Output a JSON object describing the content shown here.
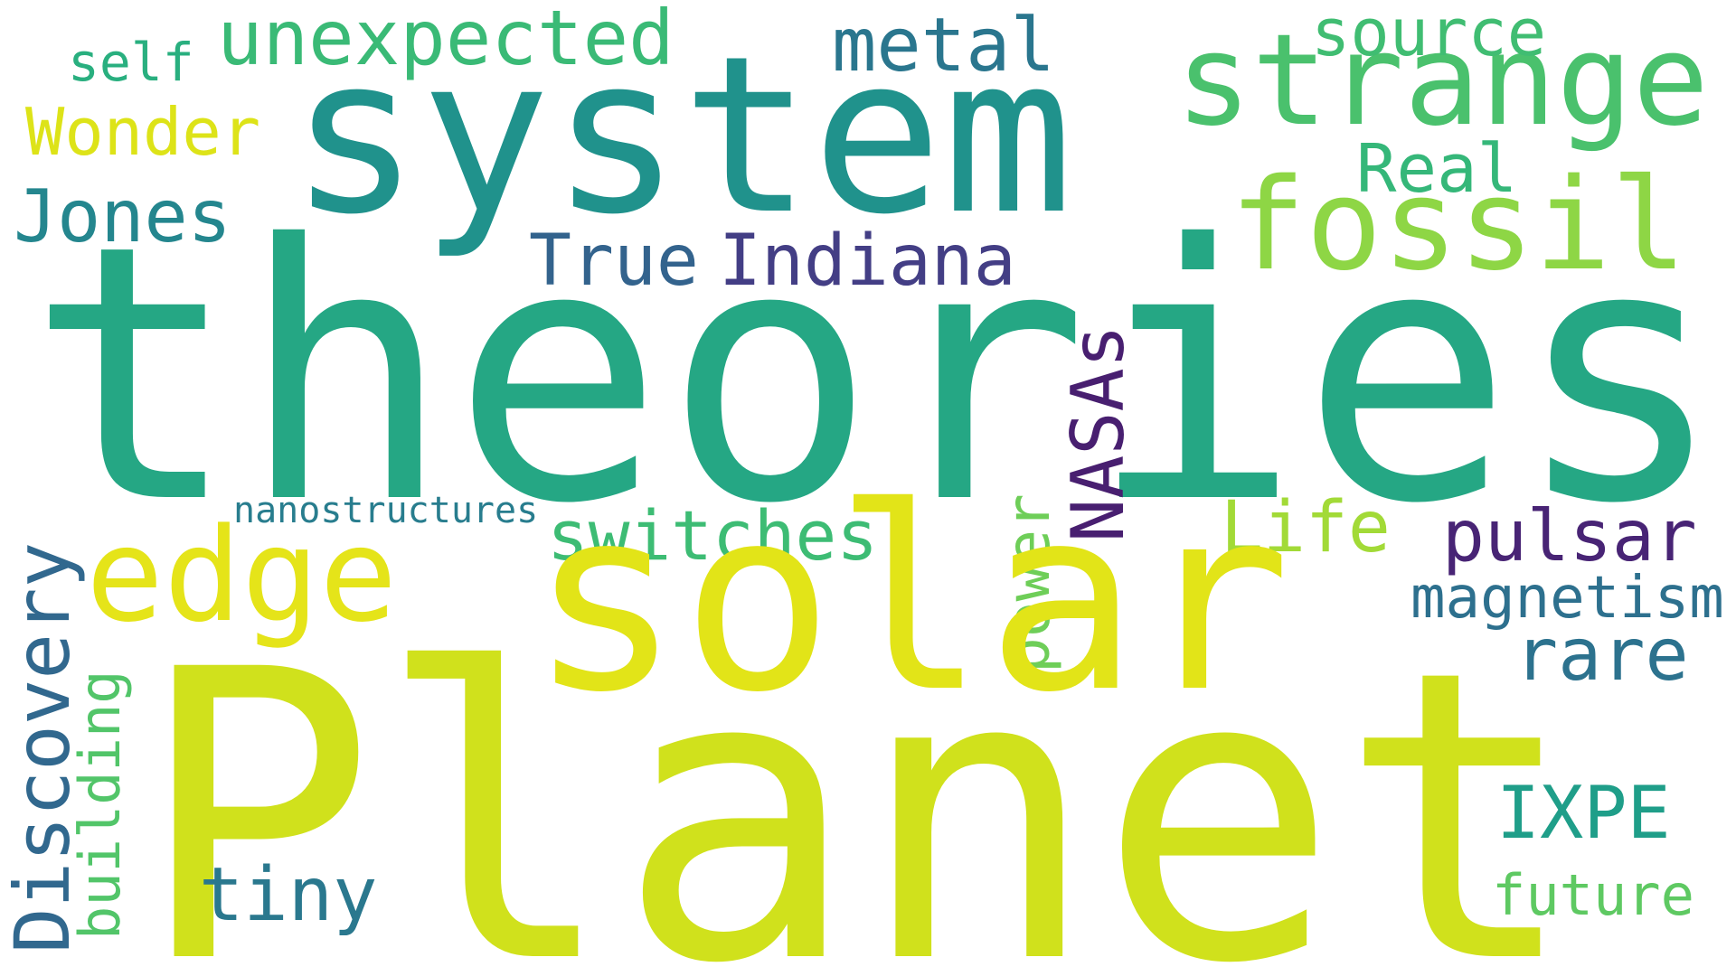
{
  "words": [
    {
      "id": "theories",
      "text": "theories",
      "color": "#25a784",
      "orientation": "horizontal"
    },
    {
      "id": "system",
      "text": "system",
      "color": "#20928c",
      "orientation": "horizontal"
    },
    {
      "id": "strange",
      "text": "strange",
      "color": "#4ac16d",
      "orientation": "horizontal"
    },
    {
      "id": "fossil",
      "text": "fossil",
      "color": "#8ed645",
      "orientation": "horizontal"
    },
    {
      "id": "source",
      "text": "source",
      "color": "#40bd72",
      "orientation": "horizontal"
    },
    {
      "id": "metal",
      "text": "metal",
      "color": "#2a768e",
      "orientation": "horizontal"
    },
    {
      "id": "unexpected",
      "text": "unexpected",
      "color": "#3aba76",
      "orientation": "horizontal"
    },
    {
      "id": "self",
      "text": "self",
      "color": "#29af7f",
      "orientation": "horizontal"
    },
    {
      "id": "wonder",
      "text": "Wonder",
      "color": "#dde318",
      "orientation": "horizontal"
    },
    {
      "id": "real",
      "text": "Real",
      "color": "#35b779",
      "orientation": "horizontal"
    },
    {
      "id": "jones",
      "text": "Jones",
      "color": "#24868e",
      "orientation": "horizontal"
    },
    {
      "id": "true",
      "text": "True",
      "color": "#33638d",
      "orientation": "horizontal"
    },
    {
      "id": "indiana",
      "text": "Indiana",
      "color": "#433e85",
      "orientation": "horizontal"
    },
    {
      "id": "nasas",
      "text": "NASAs",
      "color": "#481f70",
      "orientation": "vertical"
    },
    {
      "id": "power",
      "text": "power",
      "color": "#6ece58",
      "orientation": "vertical"
    },
    {
      "id": "nanostructures",
      "text": "nanostructures",
      "color": "#287d8e",
      "orientation": "horizontal"
    },
    {
      "id": "edge",
      "text": "edge",
      "color": "#e5e419",
      "orientation": "horizontal"
    },
    {
      "id": "switches",
      "text": "switches",
      "color": "#3dbc74",
      "orientation": "horizontal"
    },
    {
      "id": "life",
      "text": "Life",
      "color": "#a2da37",
      "orientation": "horizontal"
    },
    {
      "id": "pulsar",
      "text": "pulsar",
      "color": "#482475",
      "orientation": "horizontal"
    },
    {
      "id": "solar",
      "text": "solar",
      "color": "#e2e418",
      "orientation": "horizontal"
    },
    {
      "id": "magnetism",
      "text": "magnetism",
      "color": "#2d708e",
      "orientation": "horizontal"
    },
    {
      "id": "rare",
      "text": "rare",
      "color": "#2c728e",
      "orientation": "horizontal"
    },
    {
      "id": "discovery",
      "text": "Discovery",
      "color": "#31688e",
      "orientation": "vertical"
    },
    {
      "id": "building",
      "text": "building",
      "color": "#52c569",
      "orientation": "vertical"
    },
    {
      "id": "planet",
      "text": "Planet",
      "color": "#d0e11c",
      "orientation": "horizontal"
    },
    {
      "id": "ixpe",
      "text": "IXPE",
      "color": "#1f9e89",
      "orientation": "horizontal"
    },
    {
      "id": "tiny",
      "text": "tiny",
      "color": "#2a788e",
      "orientation": "horizontal"
    },
    {
      "id": "future",
      "text": "future",
      "color": "#5ec962",
      "orientation": "horizontal"
    }
  ]
}
